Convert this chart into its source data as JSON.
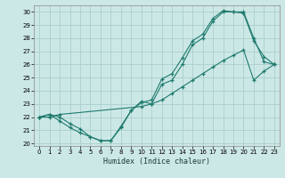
{
  "xlabel": "Humidex (Indice chaleur)",
  "background_color": "#cce8e6",
  "grid_color": "#aad0cc",
  "line_color": "#1e7a6e",
  "xlim": [
    -0.5,
    23.5
  ],
  "ylim": [
    19.8,
    30.5
  ],
  "xticks": [
    0,
    1,
    2,
    3,
    4,
    5,
    6,
    7,
    8,
    9,
    10,
    11,
    12,
    13,
    14,
    15,
    16,
    17,
    18,
    19,
    20,
    21,
    22,
    23
  ],
  "yticks": [
    20,
    21,
    22,
    23,
    24,
    25,
    26,
    27,
    28,
    29,
    30
  ],
  "line1_x": [
    0,
    1,
    2,
    3,
    4,
    5,
    6,
    7,
    8,
    9,
    10,
    11,
    12,
    13,
    14,
    15,
    16,
    17,
    18,
    19,
    20,
    21,
    22,
    23
  ],
  "line1_y": [
    22.0,
    22.2,
    21.7,
    21.2,
    20.8,
    20.5,
    20.2,
    20.2,
    21.2,
    22.5,
    23.2,
    23.0,
    24.5,
    24.8,
    26.0,
    27.5,
    28.0,
    29.3,
    30.0,
    30.0,
    29.9,
    27.8,
    26.6,
    26.0
  ],
  "line2_x": [
    0,
    1,
    2,
    3,
    4,
    5,
    6,
    7,
    8,
    9,
    10,
    11,
    12,
    13,
    14,
    15,
    16,
    17,
    18,
    19,
    20,
    21,
    22,
    23
  ],
  "line2_y": [
    22.0,
    22.2,
    22.0,
    21.5,
    21.1,
    20.5,
    20.2,
    20.2,
    21.3,
    22.5,
    23.1,
    23.3,
    24.9,
    25.3,
    26.5,
    27.8,
    28.3,
    29.5,
    30.1,
    30.0,
    30.0,
    28.0,
    26.2,
    26.0
  ],
  "line3_x": [
    0,
    1,
    2,
    10,
    11,
    12,
    13,
    14,
    15,
    16,
    17,
    18,
    19,
    20,
    21,
    22,
    23
  ],
  "line3_y": [
    22.0,
    22.0,
    22.2,
    22.8,
    23.0,
    23.3,
    23.8,
    24.3,
    24.8,
    25.3,
    25.8,
    26.3,
    26.7,
    27.1,
    24.8,
    25.5,
    26.0
  ]
}
